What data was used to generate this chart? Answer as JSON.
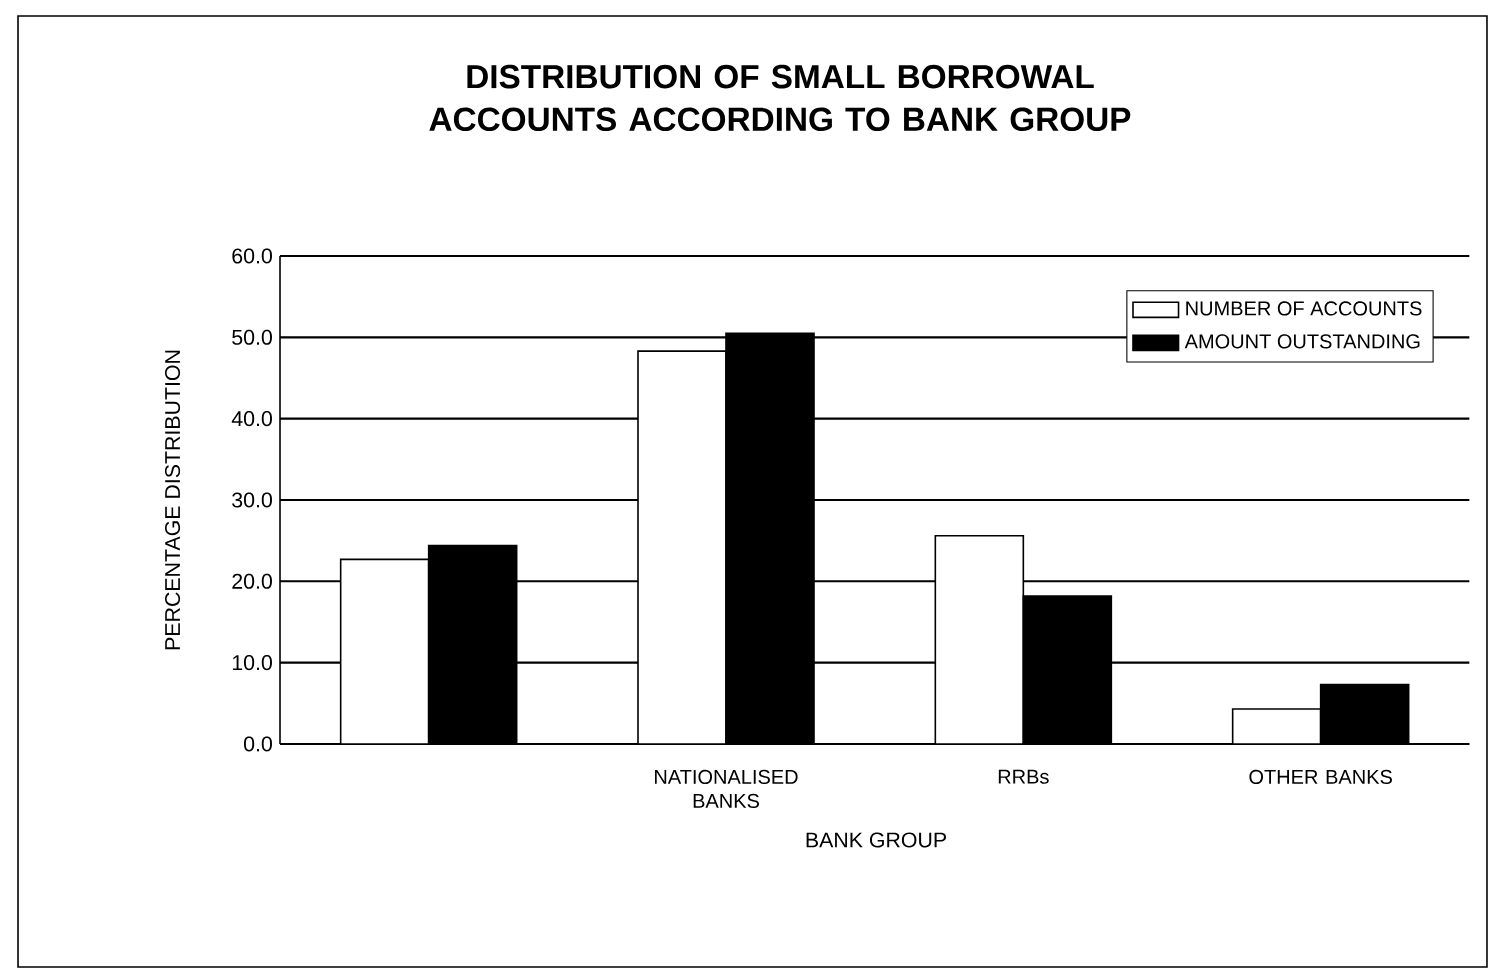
{
  "chart_data": {
    "type": "bar",
    "title": "DISTRIBUTION OF SMALL BORROWAL ACCOUNTS ACCORDING TO BANK GROUP",
    "xlabel": "BANK GROUP",
    "ylabel": "PERCENTAGE DISTRIBUTION",
    "categories": [
      null,
      "NATIONALISED BANKS",
      "RRBs",
      "OTHER BANKS"
    ],
    "series": [
      {
        "name": "NUMBER OF ACCOUNTS",
        "color": "#ffffff",
        "values": [
          22.7,
          48.3,
          25.6,
          4.3
        ]
      },
      {
        "name": "AMOUNT OUTSTANDING",
        "color": "#000000",
        "values": [
          24.4,
          50.5,
          18.2,
          7.3
        ]
      }
    ],
    "ylim": [
      0,
      60
    ],
    "yticks": [
      {
        "value": 0,
        "label": "0.0"
      },
      {
        "value": 10,
        "label": "10.0"
      },
      {
        "value": 20,
        "label": "20.0"
      },
      {
        "value": 30,
        "label": "30.0"
      },
      {
        "value": 40,
        "label": "40.0"
      },
      {
        "value": 50,
        "label": "50.0"
      },
      {
        "value": 60,
        "label": "60.0"
      }
    ],
    "grid": "y",
    "legend": "top right"
  }
}
